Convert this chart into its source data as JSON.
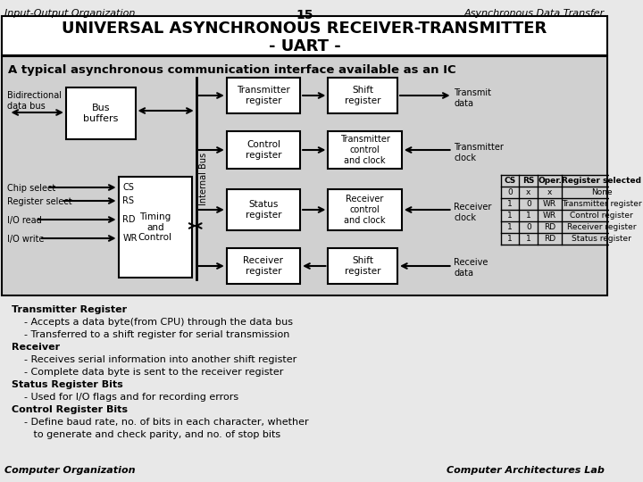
{
  "bg_color": "#e8e8e8",
  "title_bar_color": "#ffffff",
  "header_line1": "UNIVERSAL ASYNCHRONOUS RECEIVER-TRANSMITTER",
  "header_line2": "- UART -",
  "top_left": "Input-Output Organization",
  "top_center": "15",
  "top_right": "Asynchronous Data Transfer",
  "bottom_left": "Computer Organization",
  "bottom_right": "Computer Architectures Lab",
  "section_title": "A typical asynchronous communication interface available as an IC",
  "body_text": [
    "Transmitter Register",
    "    - Accepts a data byte(from CPU) through the data bus",
    "    - Transferred to a shift register for serial transmission",
    "Receiver",
    "    - Receives serial information into another shift register",
    "    - Complete data byte is sent to the receiver register",
    "Status Register Bits",
    "    - Used for I/O flags and for recording errors",
    "Control Register Bits",
    "    - Define baud rate, no. of bits in each character, whether",
    "       to generate and check parity, and no. of stop bits"
  ],
  "table_headers": [
    "CS",
    "RS",
    "Oper.",
    "Register selected"
  ],
  "table_rows": [
    [
      "0",
      "x",
      "x",
      "None"
    ],
    [
      "1",
      "0",
      "WR",
      "Transmitter register"
    ],
    [
      "1",
      "1",
      "WR",
      "Control register"
    ],
    [
      "1",
      "0",
      "RD",
      "Receiver register"
    ],
    [
      "1",
      "1",
      "RD",
      "Status register"
    ]
  ],
  "bold_lines": [
    0,
    3,
    6,
    8
  ]
}
